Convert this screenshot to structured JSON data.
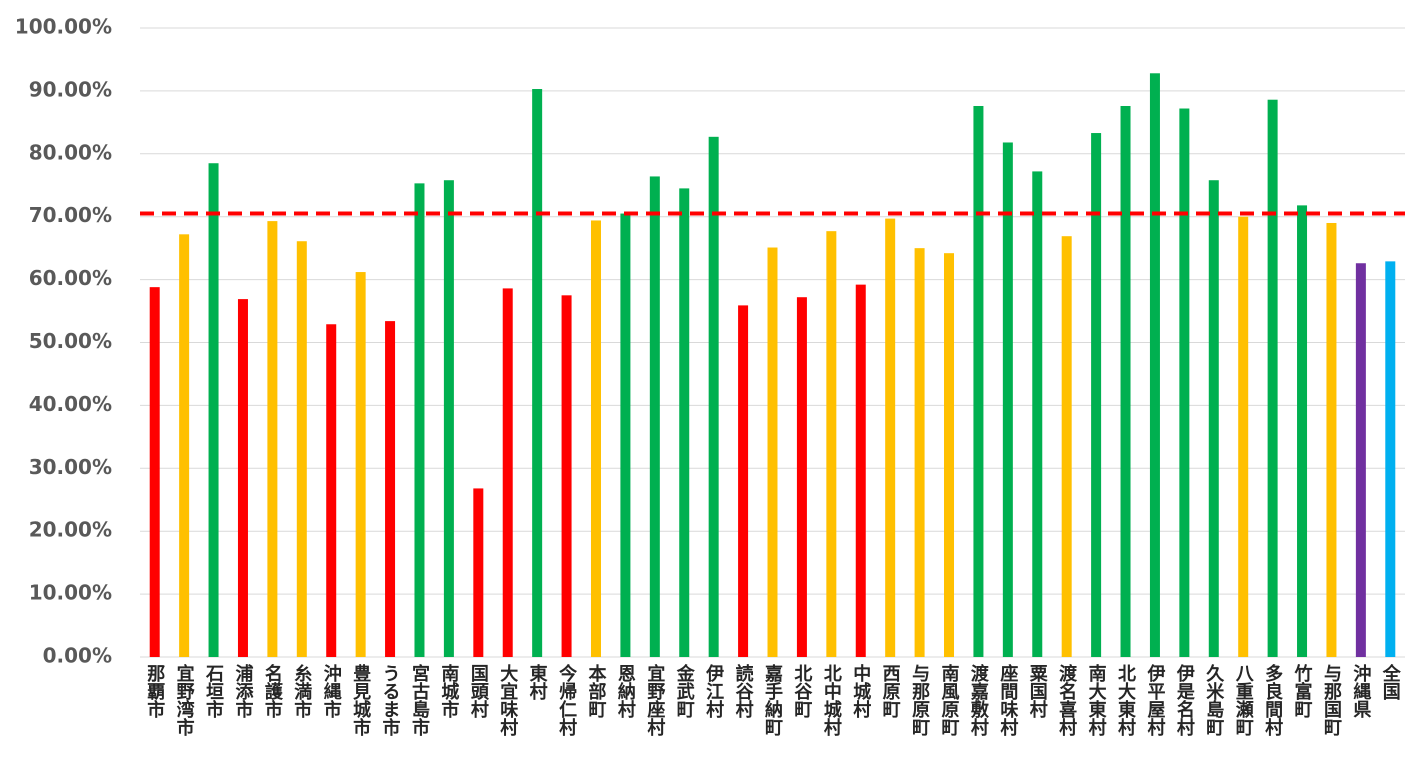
{
  "chart_data": {
    "type": "bar",
    "categories": [
      "那覇市",
      "宜野湾市",
      "石垣市",
      "浦添市",
      "名護市",
      "糸満市",
      "沖縄市",
      "豊見城市",
      "うるま市",
      "宮古島市",
      "南城市",
      "国頭村",
      "大宜味村",
      "東村",
      "今帰仁村",
      "本部町",
      "恩納村",
      "宜野座村",
      "金武町",
      "伊江村",
      "読谷村",
      "嘉手納町",
      "北谷町",
      "北中城村",
      "中城村",
      "西原町",
      "与那原町",
      "南風原町",
      "渡嘉敷村",
      "座間味村",
      "粟国村",
      "渡名喜村",
      "南大東村",
      "北大東村",
      "伊平屋村",
      "伊是名村",
      "久米島町",
      "八重瀬町",
      "多良間村",
      "竹富町",
      "与那国町",
      "沖縄県",
      "全国"
    ],
    "values": [
      58.8,
      67.2,
      78.5,
      56.9,
      69.3,
      66.1,
      52.9,
      61.2,
      53.4,
      75.3,
      75.8,
      26.8,
      58.6,
      90.3,
      57.5,
      69.4,
      70.5,
      76.4,
      74.5,
      82.7,
      55.9,
      65.1,
      57.2,
      67.7,
      59.2,
      69.7,
      65.0,
      64.2,
      87.6,
      81.8,
      77.2,
      66.9,
      83.3,
      87.6,
      92.8,
      87.2,
      75.8,
      70.0,
      88.6,
      71.8,
      69.0,
      62.6,
      62.9
    ],
    "colors": [
      "#ff0000",
      "#ffc000",
      "#00b050",
      "#ff0000",
      "#ffc000",
      "#ffc000",
      "#ff0000",
      "#ffc000",
      "#ff0000",
      "#00b050",
      "#00b050",
      "#ff0000",
      "#ff0000",
      "#00b050",
      "#ff0000",
      "#ffc000",
      "#00b050",
      "#00b050",
      "#00b050",
      "#00b050",
      "#ff0000",
      "#ffc000",
      "#ff0000",
      "#ffc000",
      "#ff0000",
      "#ffc000",
      "#ffc000",
      "#ffc000",
      "#00b050",
      "#00b050",
      "#00b050",
      "#ffc000",
      "#00b050",
      "#00b050",
      "#00b050",
      "#00b050",
      "#00b050",
      "#ffc000",
      "#00b050",
      "#00b050",
      "#ffc000",
      "#7030a0",
      "#00b0f0"
    ],
    "reference_line": 70.5,
    "reference_color": "#ff0000",
    "ylim": [
      0,
      100
    ],
    "yticks": [
      {
        "value": 0,
        "label": "0.00%"
      },
      {
        "value": 10,
        "label": "10.00%"
      },
      {
        "value": 20,
        "label": "20.00%"
      },
      {
        "value": 30,
        "label": "30.00%"
      },
      {
        "value": 40,
        "label": "40.00%"
      },
      {
        "value": 50,
        "label": "50.00%"
      },
      {
        "value": 60,
        "label": "60.00%"
      },
      {
        "value": 70,
        "label": "70.00%"
      },
      {
        "value": 80,
        "label": "80.00%"
      },
      {
        "value": 90,
        "label": "90.00%"
      },
      {
        "value": 100,
        "label": "100.00%"
      }
    ],
    "grid": true
  }
}
